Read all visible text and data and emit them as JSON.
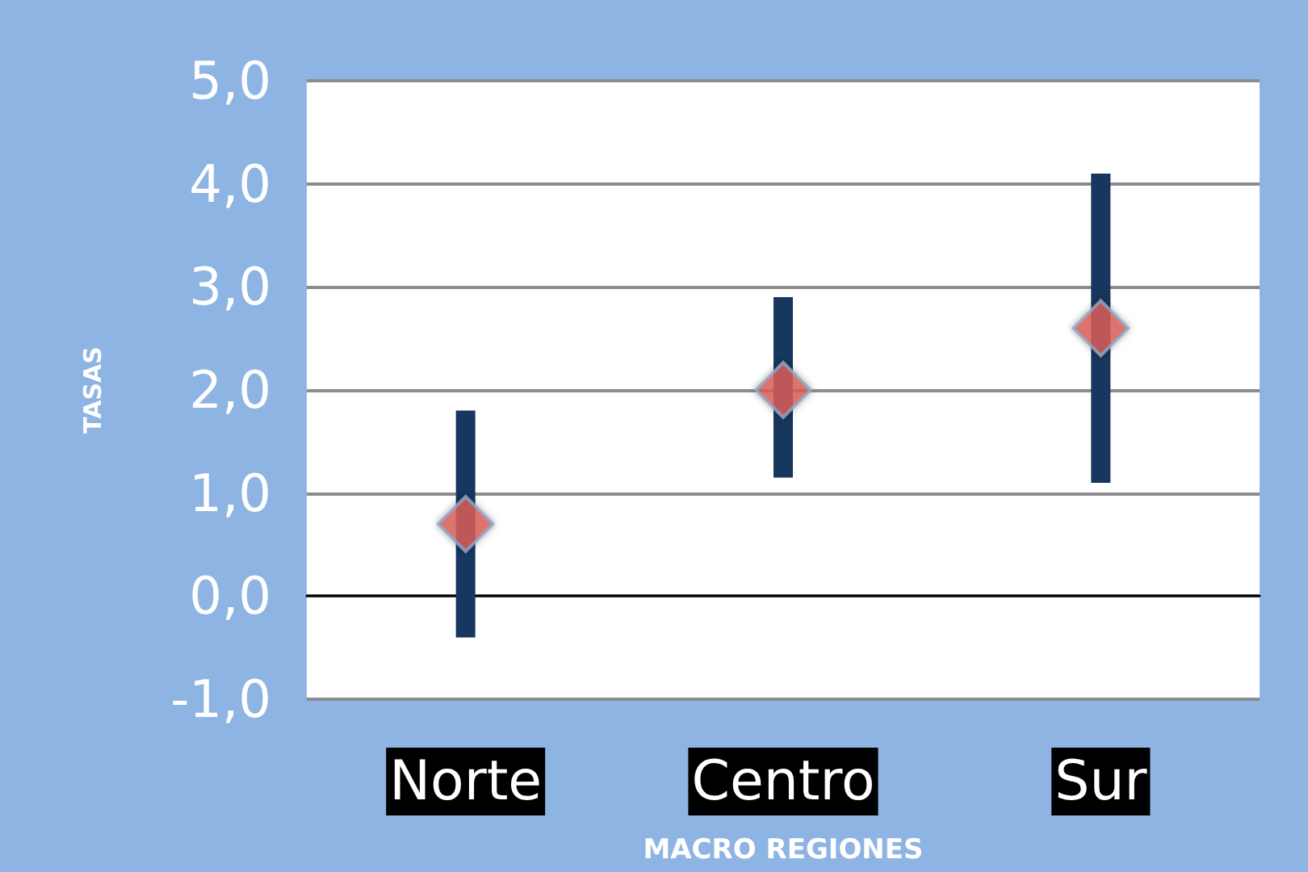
{
  "chart_data": {
    "type": "scatter",
    "xlabel": "MACRO REGIONES",
    "ylabel": "TASAS",
    "categories": [
      "Norte",
      "Centro",
      "Sur"
    ],
    "series": [
      {
        "color": "#e0605a",
        "values": [
          0.7,
          2.0,
          2.6
        ],
        "errors": [
          [
            -0.4,
            1.8
          ],
          [
            1.15,
            2.9
          ],
          [
            1.1,
            4.1
          ]
        ]
      }
    ],
    "ylim": [
      -1,
      5
    ],
    "yticks": [
      {
        "value": -1,
        "label": "-1,0"
      },
      {
        "value": 0,
        "label": "0,0"
      },
      {
        "value": 1,
        "label": "1,0"
      },
      {
        "value": 2,
        "label": "2,0"
      },
      {
        "value": 3,
        "label": "3,0"
      },
      {
        "value": 4,
        "label": "4,0"
      },
      {
        "value": 5,
        "label": "5,0"
      }
    ],
    "grid": "y",
    "marker": "diamond"
  }
}
